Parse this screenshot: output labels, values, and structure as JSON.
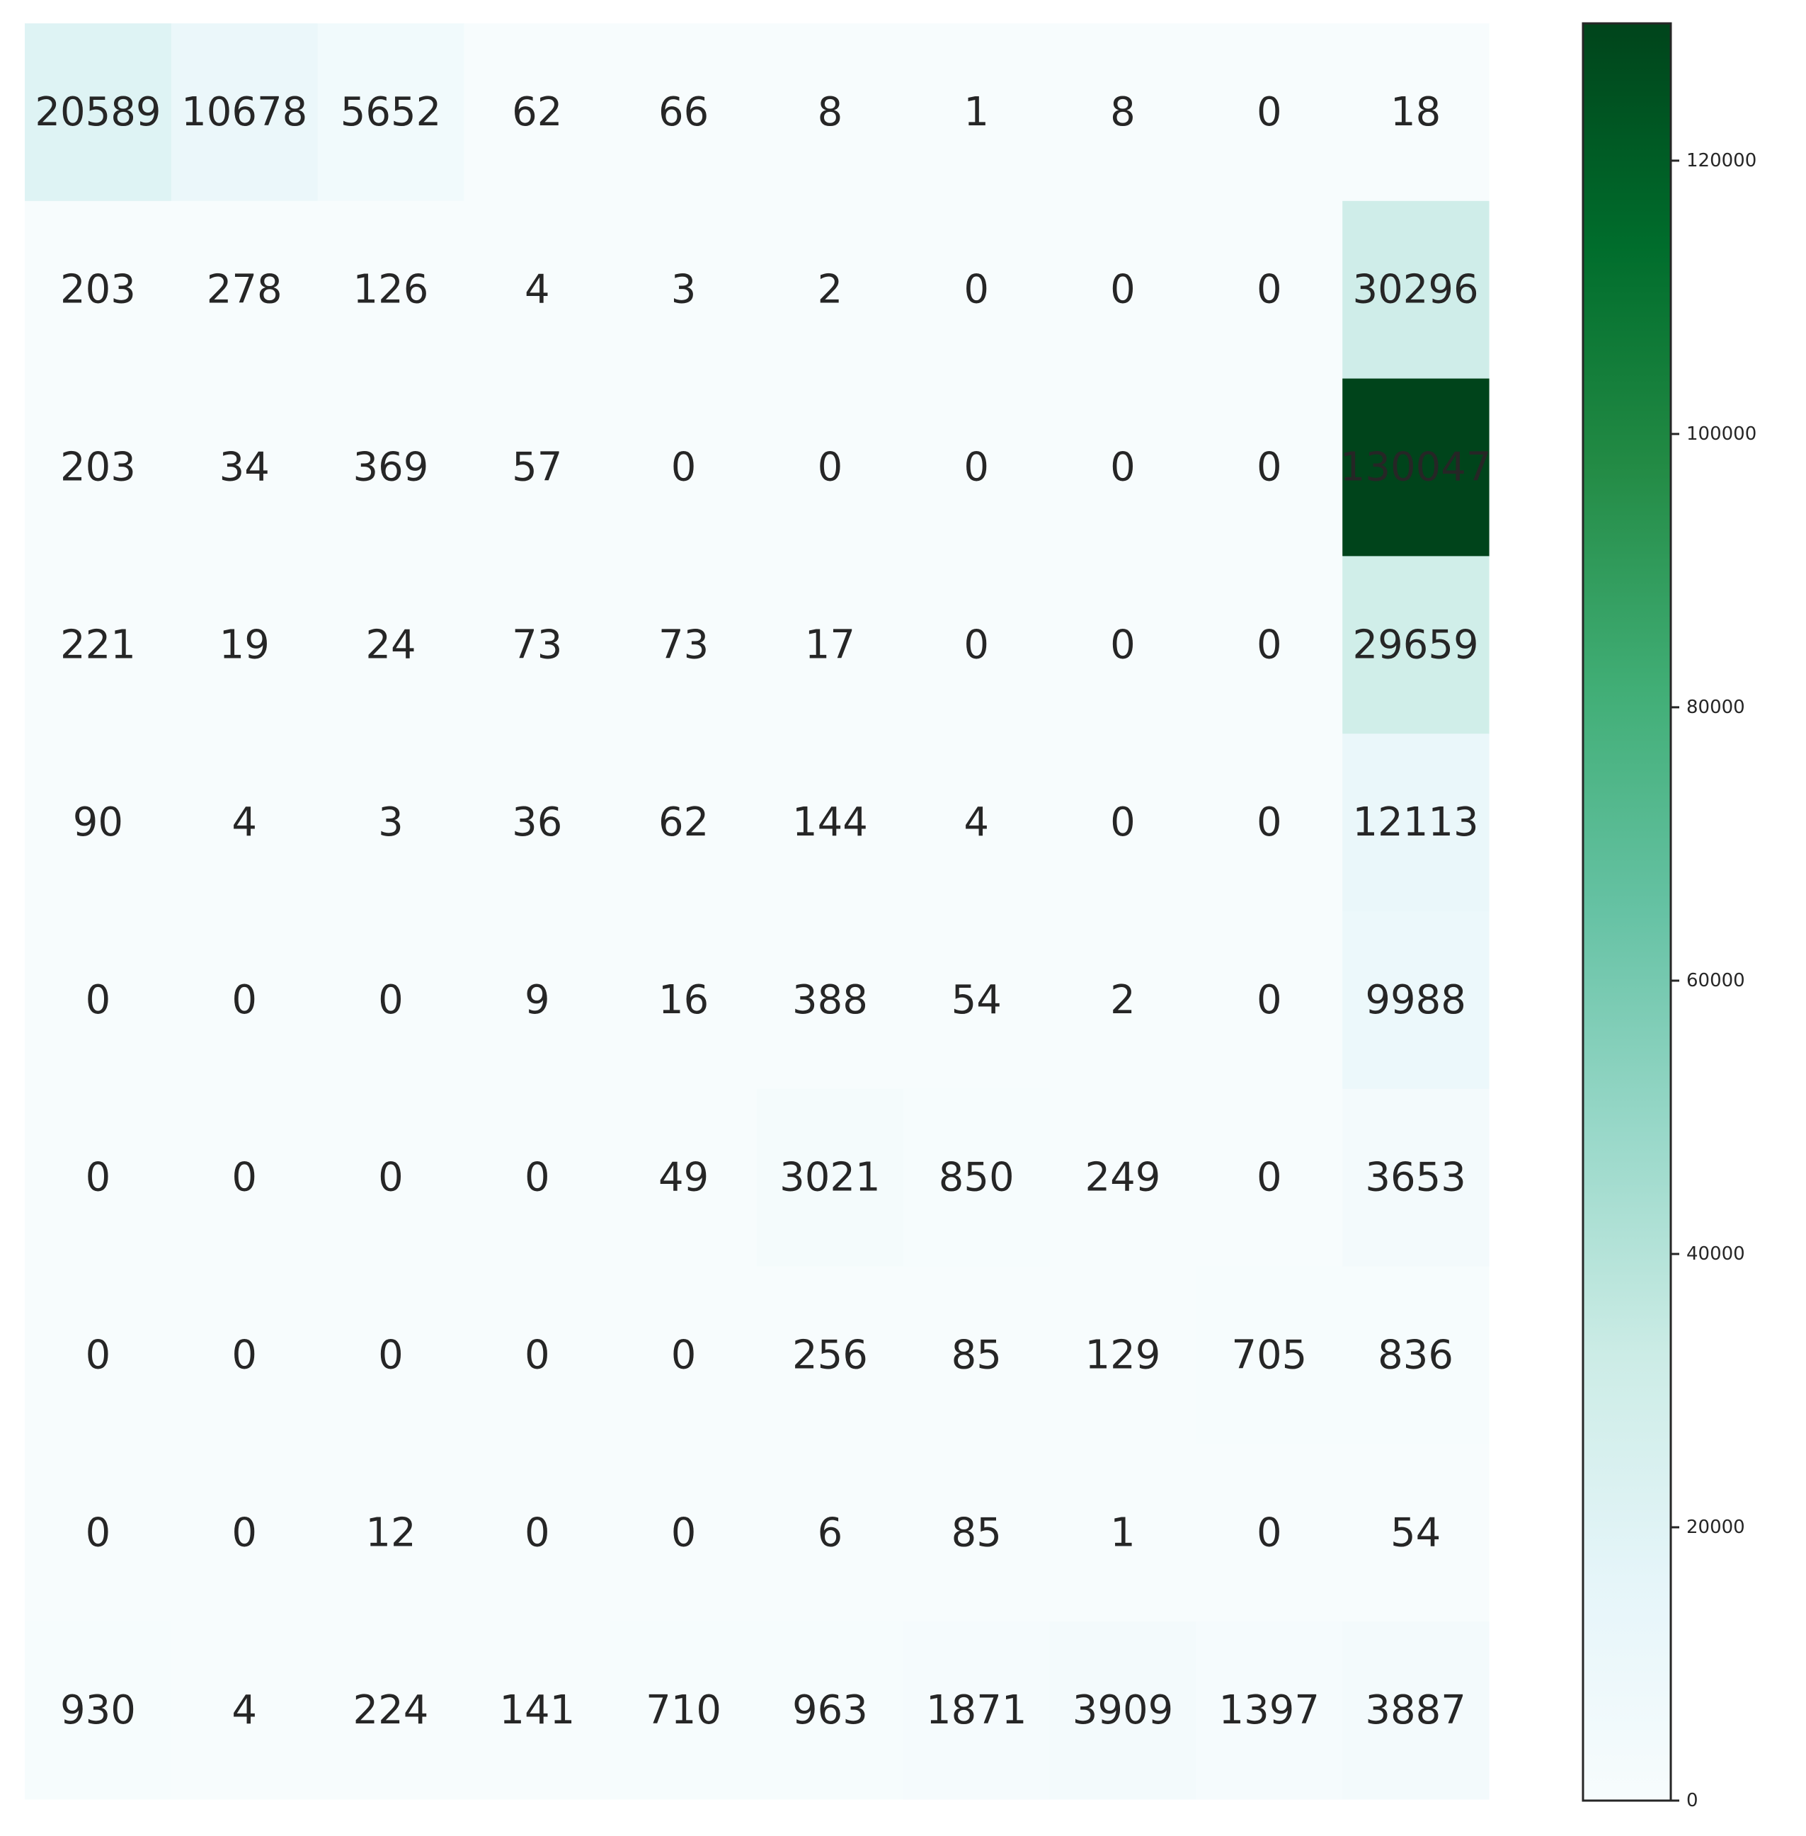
{
  "chart_data": {
    "type": "heatmap",
    "colormap": "BuGn",
    "colors": {
      "low": "#f7fcfd",
      "high": "#00441b",
      "text": "#262626"
    },
    "rows": [
      [
        20589,
        10678,
        5652,
        62,
        66,
        8,
        1,
        8,
        0,
        18
      ],
      [
        203,
        278,
        126,
        4,
        3,
        2,
        0,
        0,
        0,
        30296
      ],
      [
        203,
        34,
        369,
        57,
        0,
        0,
        0,
        0,
        0,
        130047
      ],
      [
        221,
        19,
        24,
        73,
        73,
        17,
        0,
        0,
        0,
        29659
      ],
      [
        90,
        4,
        3,
        36,
        62,
        144,
        4,
        0,
        0,
        12113
      ],
      [
        0,
        0,
        0,
        9,
        16,
        388,
        54,
        2,
        0,
        9988
      ],
      [
        0,
        0,
        0,
        0,
        49,
        3021,
        850,
        249,
        0,
        3653
      ],
      [
        0,
        0,
        0,
        0,
        0,
        256,
        85,
        129,
        705,
        836
      ],
      [
        0,
        0,
        12,
        0,
        0,
        6,
        85,
        1,
        0,
        54
      ],
      [
        930,
        4,
        224,
        141,
        710,
        963,
        1871,
        3909,
        1397,
        3887
      ]
    ],
    "colorbar": {
      "range": [
        0,
        130047
      ],
      "ticks": [
        0,
        20000,
        40000,
        60000,
        80000,
        100000,
        120000
      ]
    },
    "grid": false,
    "legend": "colorbar-right"
  }
}
